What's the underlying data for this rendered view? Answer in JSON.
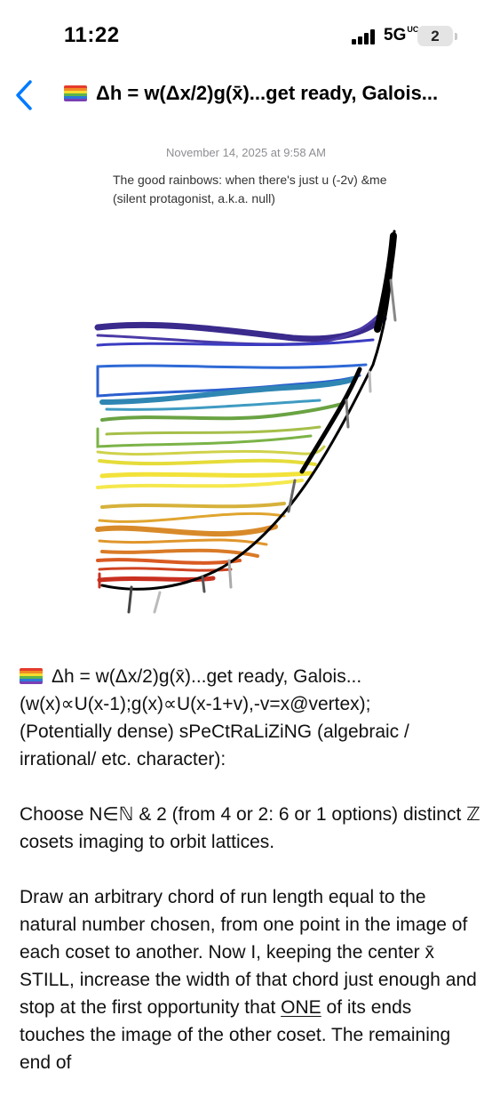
{
  "status": {
    "time": "11:22",
    "network": "5G",
    "network_sup": "UC",
    "battery_label": "2"
  },
  "nav": {
    "title": "Δh = w(Δx/2)g(x̄)...get ready, Galois...",
    "back_icon": "chevron-left-icon"
  },
  "note": {
    "timestamp": "November 14, 2025 at 9:58 AM",
    "caption": "The good rainbows: when there's just u (-2v) &me (silent protagonist, a.k.a. null)",
    "drawing_icon": "rainbow-sketch",
    "flag_icon": "rainbow-flag-icon",
    "heading": "Δh = w(Δx/2)g(x̄)...get ready, Galois...",
    "lines": [
      "(w(x)∝U(x-1);g(x)∝U(x-1+v),-v=x@vertex);",
      "(Potentially dense) sPeCtRaLiZiNG (algebraic / irrational/ etc. character):"
    ],
    "paragraph2": "Choose N∈ℕ & 2 (from 4 or 2: 6 or 1 options) distinct ℤ cosets imaging to orbit lattices.",
    "paragraph3_before": "Draw an arbitrary chord of run length equal to the natural number chosen, from one point in the image of each coset to another.  Now I, keeping the center x̄ STILL, increase the width of that chord just enough and stop at the first opportunity that ",
    "paragraph3_underlined": "ONE",
    "paragraph3_after": " of its ends touches the image of the other coset.  The remaining end of"
  },
  "colors": {
    "accent": "#007aff",
    "timestamp": "#8e8e93",
    "rainbow": [
      "#e53b2c",
      "#f08a24",
      "#f6dd2f",
      "#5db54a",
      "#2d7ad6",
      "#7a3fb5"
    ]
  }
}
